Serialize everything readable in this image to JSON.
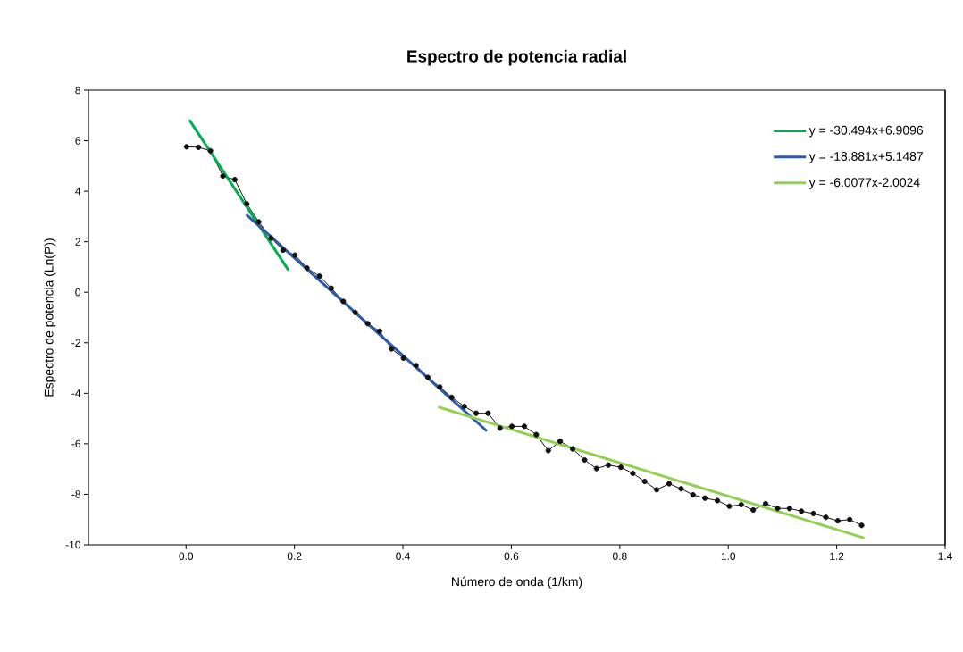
{
  "chart_data": {
    "type": "line",
    "title": "Espectro de potencia radial",
    "xlabel": "Número de onda (1/km)",
    "ylabel": "Espectro de potencia (Ln(P))",
    "xlim": [
      -0.18,
      1.4
    ],
    "ylim": [
      -10,
      8
    ],
    "xticks": [
      {
        "value": 0,
        "label": "0.0"
      },
      {
        "value": 0.2,
        "label": "0.2"
      },
      {
        "value": 0.4,
        "label": "0.4"
      },
      {
        "value": 0.6,
        "label": "0.6"
      },
      {
        "value": 0.8,
        "label": "0.8"
      },
      {
        "value": 1.0,
        "label": "1.0"
      },
      {
        "value": 1.2,
        "label": "1.2"
      },
      {
        "value": 1.4,
        "label": "1.4"
      }
    ],
    "yticks": [
      -10,
      -8,
      -6,
      -4,
      -2,
      0,
      2,
      4,
      6,
      8
    ],
    "grid": false,
    "legend": "top right",
    "series": [
      {
        "color": "#111111",
        "marker": "circle",
        "x": [
          0.001,
          0.023,
          0.045,
          0.068,
          0.09,
          0.112,
          0.134,
          0.157,
          0.179,
          0.201,
          0.223,
          0.246,
          0.268,
          0.29,
          0.312,
          0.335,
          0.357,
          0.379,
          0.401,
          0.424,
          0.446,
          0.468,
          0.49,
          0.513,
          0.535,
          0.557,
          0.579,
          0.601,
          0.624,
          0.646,
          0.668,
          0.69,
          0.713,
          0.735,
          0.757,
          0.779,
          0.802,
          0.824,
          0.846,
          0.868,
          0.891,
          0.913,
          0.935,
          0.957,
          0.98,
          1.002,
          1.024,
          1.046,
          1.069,
          1.091,
          1.113,
          1.135,
          1.157,
          1.18,
          1.202,
          1.224,
          1.246
        ],
        "values": [
          5.76,
          5.74,
          5.6,
          4.6,
          4.46,
          3.5,
          2.79,
          2.14,
          1.67,
          1.47,
          0.96,
          0.64,
          0.16,
          -0.36,
          -0.8,
          -1.24,
          -1.54,
          -2.24,
          -2.61,
          -2.9,
          -3.37,
          -3.75,
          -4.16,
          -4.52,
          -4.79,
          -4.79,
          -5.38,
          -5.31,
          -5.31,
          -5.64,
          -6.27,
          -5.9,
          -6.2,
          -6.64,
          -6.98,
          -6.84,
          -6.93,
          -7.17,
          -7.49,
          -7.82,
          -7.58,
          -7.78,
          -8.02,
          -8.15,
          -8.25,
          -8.47,
          -8.41,
          -8.62,
          -8.37,
          -8.56,
          -8.56,
          -8.67,
          -8.76,
          -8.91,
          -9.05,
          -9.0,
          -9.23
        ]
      },
      {
        "name": "y = -30.494x+6.9096",
        "color": "#00b050",
        "marker": "none",
        "x": [
          0.006,
          0.189
        ],
        "values": [
          6.83,
          0.87
        ]
      },
      {
        "name": "y = -18.881x+5.1487",
        "color": "#2e5aa8",
        "marker": "none",
        "x": [
          0.111,
          0.555
        ],
        "values": [
          3.08,
          -5.5
        ]
      },
      {
        "name": "y = -6.0077x-2.0024",
        "color": "#92d050",
        "marker": "none",
        "x": [
          0.465,
          1.251
        ],
        "values": [
          -4.54,
          -9.73
        ]
      }
    ]
  }
}
